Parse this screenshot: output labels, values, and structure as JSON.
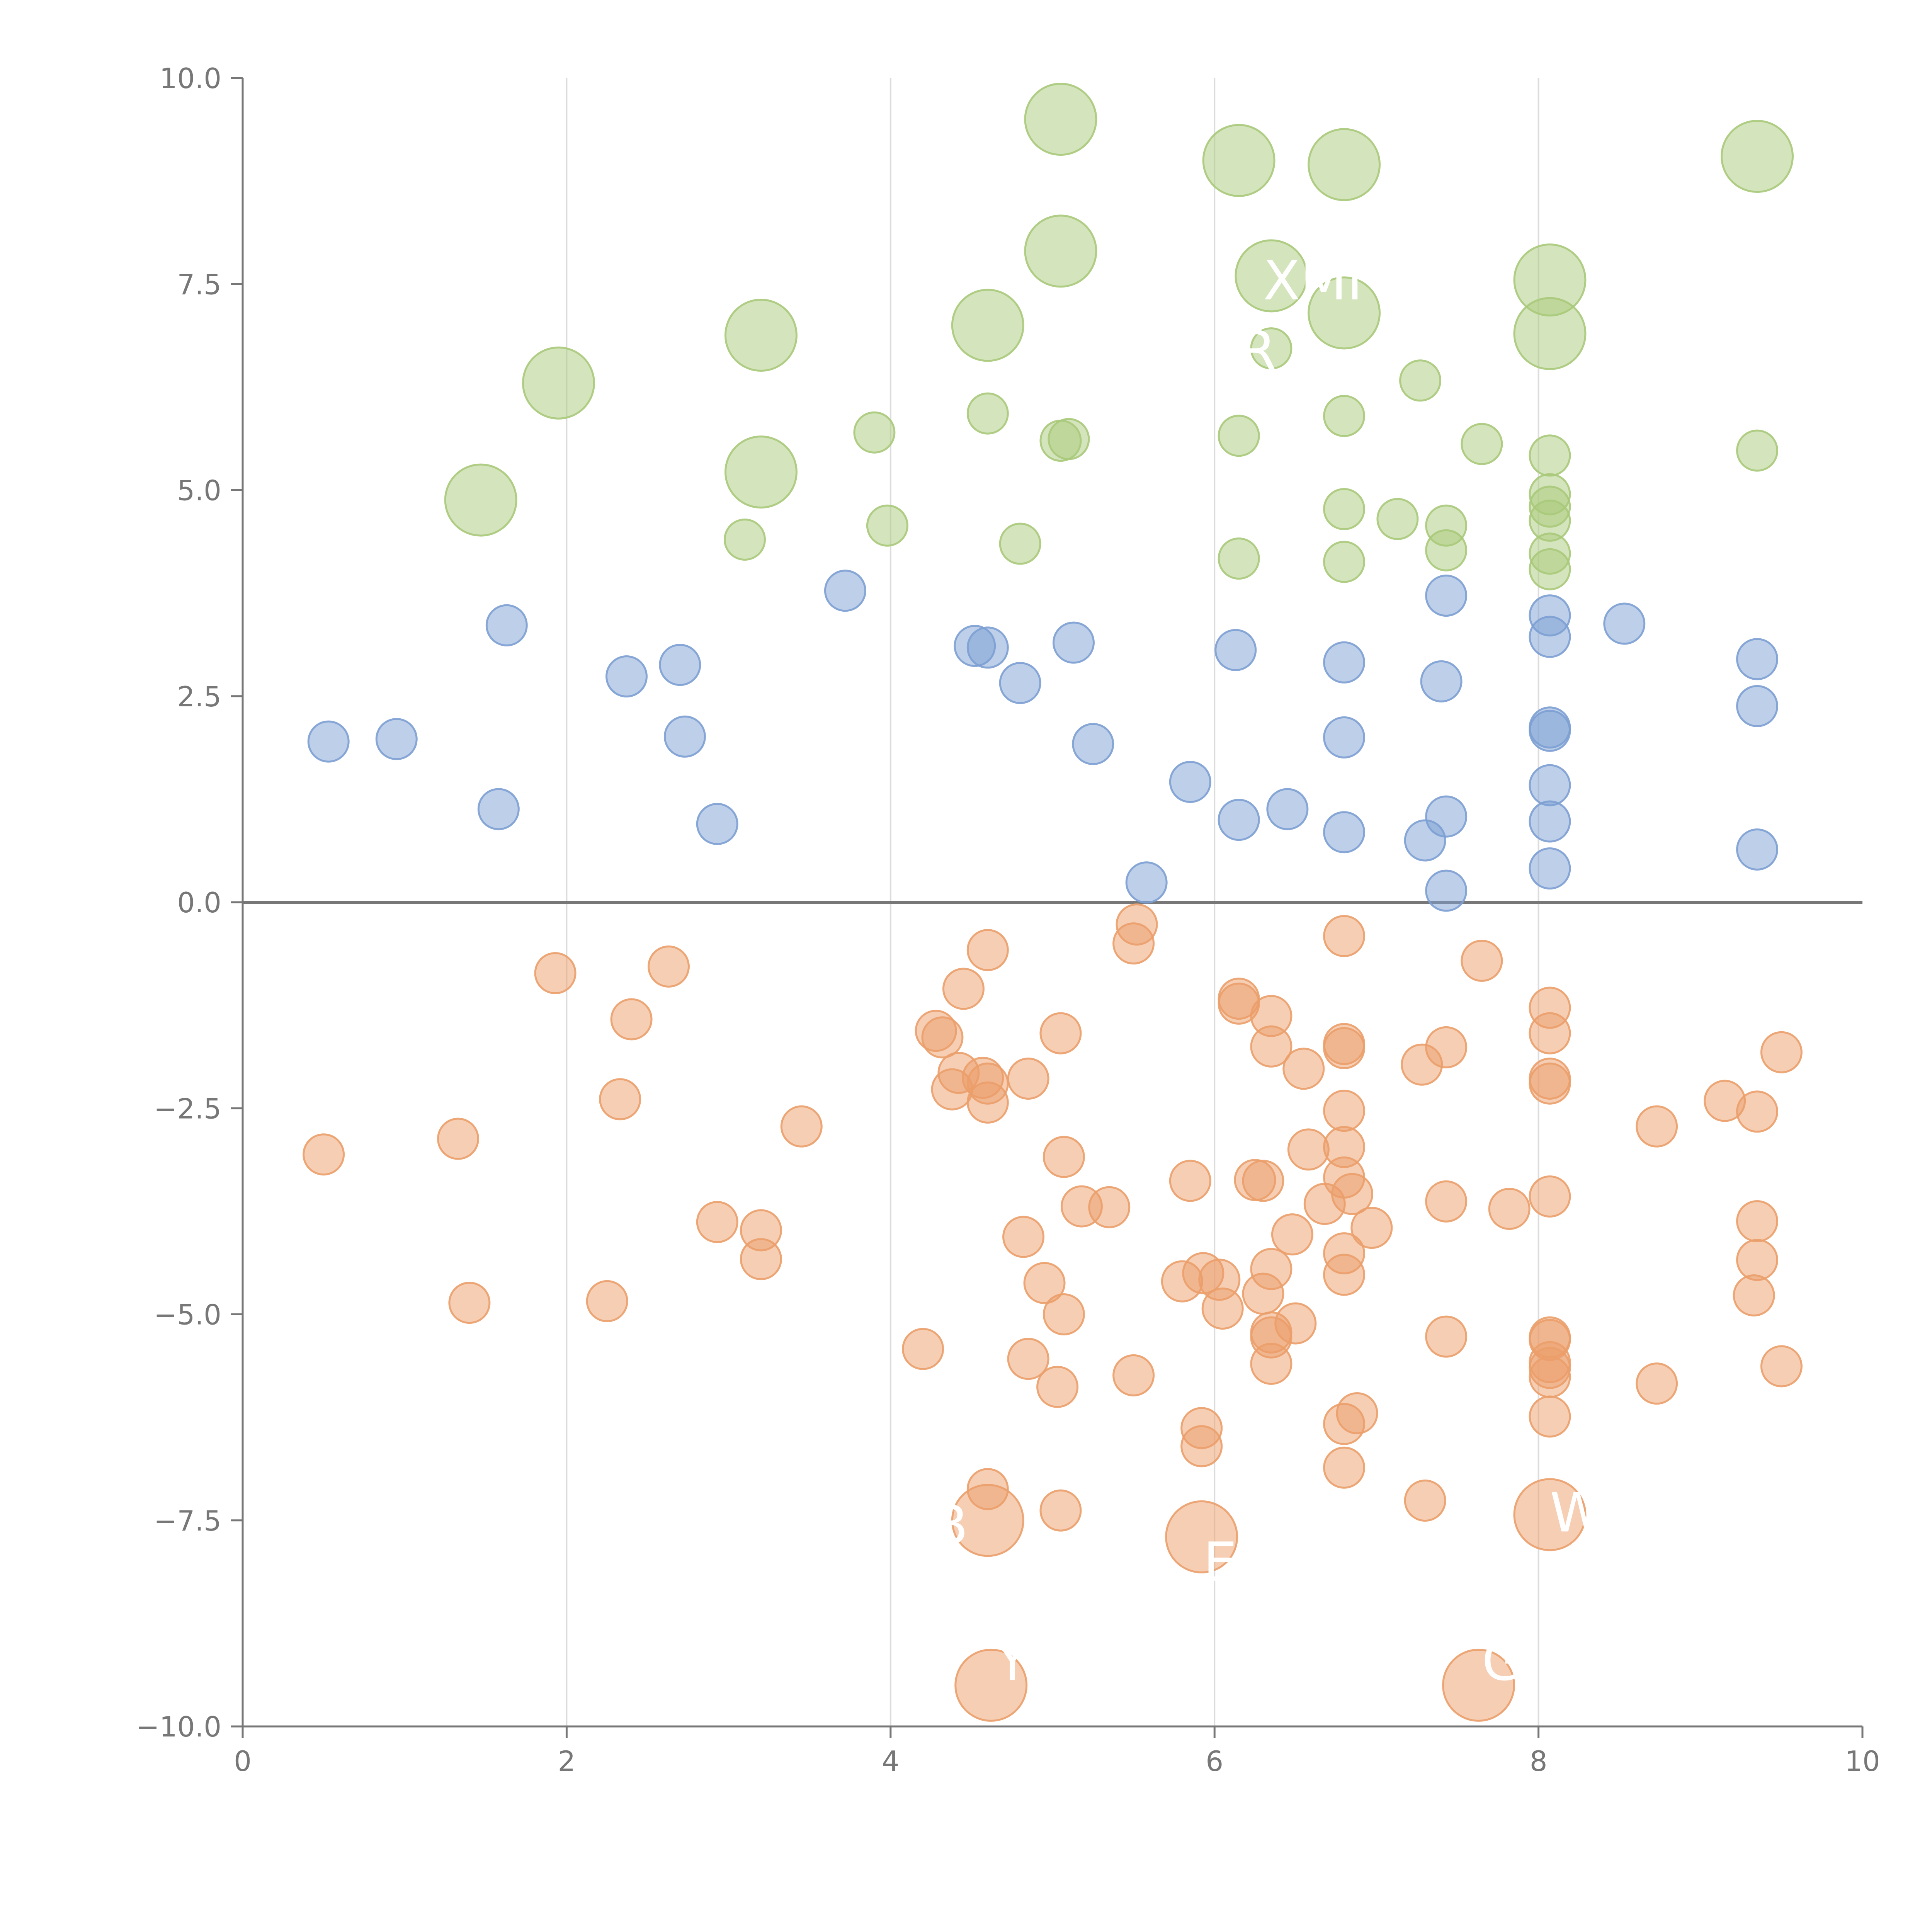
{
  "chart_data": {
    "type": "scatter",
    "title": "",
    "xlabel": "",
    "ylabel": "",
    "xlim": [
      0,
      10
    ],
    "ylim": [
      -10,
      10
    ],
    "x_ticks": [
      "0",
      "2",
      "4",
      "6",
      "8",
      "10"
    ],
    "y_ticks": [
      "10.0",
      "7.5",
      "5.0",
      "2.5",
      "0.0",
      "−2.5",
      "−5.0",
      "−7.5",
      "−10.0"
    ],
    "grid": "vertical",
    "colors": {
      "green": "#a9c97a",
      "blue": "#7c9fd3",
      "orange": "#eb9e6a",
      "axis": "#777777",
      "grid": "#dcdcdc",
      "zero_line": "#777777",
      "label_text": "#ffffff"
    },
    "series": [
      {
        "name": "green",
        "points": [
          [
            5.05,
            9.5,
            2
          ],
          [
            6.15,
            9.0,
            2
          ],
          [
            6.8,
            8.95,
            2
          ],
          [
            9.35,
            9.05,
            2
          ],
          [
            5.05,
            7.9,
            2
          ],
          [
            6.35,
            7.6,
            2
          ],
          [
            8.07,
            7.55,
            2
          ],
          [
            6.8,
            7.15,
            2
          ],
          [
            8.07,
            6.9,
            2
          ],
          [
            3.2,
            6.88,
            2
          ],
          [
            4.6,
            7.0,
            2
          ],
          [
            1.95,
            6.3,
            2
          ],
          [
            3.2,
            5.22,
            2
          ],
          [
            1.47,
            4.88,
            2
          ],
          [
            6.35,
            6.72,
            1
          ],
          [
            7.27,
            6.33,
            1
          ],
          [
            3.9,
            5.7,
            1
          ],
          [
            4.6,
            5.93,
            1
          ],
          [
            5.05,
            5.6,
            1
          ],
          [
            5.1,
            5.62,
            1
          ],
          [
            6.15,
            5.66,
            1
          ],
          [
            6.8,
            5.9,
            1
          ],
          [
            7.65,
            5.56,
            1
          ],
          [
            8.07,
            5.42,
            1
          ],
          [
            9.35,
            5.48,
            1
          ],
          [
            3.1,
            4.4,
            1
          ],
          [
            3.98,
            4.57,
            1
          ],
          [
            4.8,
            4.35,
            1
          ],
          [
            6.8,
            4.77,
            1
          ],
          [
            7.13,
            4.65,
            1
          ],
          [
            7.43,
            4.57,
            1
          ],
          [
            8.07,
            4.95,
            1
          ],
          [
            8.07,
            4.8,
            1
          ],
          [
            8.07,
            4.63,
            1
          ],
          [
            7.43,
            4.27,
            1
          ],
          [
            8.07,
            4.23,
            1
          ],
          [
            6.15,
            4.17,
            1
          ],
          [
            6.8,
            4.13,
            1
          ],
          [
            8.07,
            4.04,
            1
          ]
        ]
      },
      {
        "name": "blue",
        "points": [
          [
            0.53,
            1.95,
            1
          ],
          [
            0.95,
            1.98,
            1
          ],
          [
            1.63,
            3.36,
            1
          ],
          [
            1.58,
            1.13,
            1
          ],
          [
            2.37,
            2.74,
            1
          ],
          [
            2.7,
            2.88,
            1
          ],
          [
            2.73,
            2.01,
            1
          ],
          [
            2.93,
            0.95,
            1
          ],
          [
            3.72,
            3.78,
            1
          ],
          [
            4.52,
            3.11,
            1
          ],
          [
            4.6,
            3.09,
            1
          ],
          [
            4.8,
            2.66,
            1
          ],
          [
            5.13,
            3.15,
            1
          ],
          [
            5.25,
            1.92,
            1
          ],
          [
            5.85,
            1.46,
            1
          ],
          [
            5.58,
            0.24,
            1
          ],
          [
            6.13,
            3.06,
            1
          ],
          [
            6.15,
            1.0,
            1
          ],
          [
            6.45,
            1.13,
            1
          ],
          [
            6.8,
            2.91,
            1
          ],
          [
            6.8,
            2.0,
            1
          ],
          [
            6.8,
            0.85,
            1
          ],
          [
            7.43,
            3.72,
            1
          ],
          [
            7.4,
            2.68,
            1
          ],
          [
            7.43,
            1.04,
            1
          ],
          [
            7.3,
            0.75,
            1
          ],
          [
            7.43,
            0.14,
            1
          ],
          [
            8.07,
            3.48,
            1
          ],
          [
            8.07,
            3.22,
            1
          ],
          [
            8.07,
            2.12,
            1
          ],
          [
            8.07,
            2.08,
            1
          ],
          [
            8.07,
            1.42,
            1
          ],
          [
            8.07,
            0.98,
            1
          ],
          [
            8.07,
            0.41,
            1
          ],
          [
            8.53,
            3.38,
            1
          ],
          [
            9.35,
            2.95,
            1
          ],
          [
            9.35,
            2.38,
            1
          ],
          [
            9.35,
            0.64,
            1
          ]
        ]
      },
      {
        "name": "orange",
        "points": [
          [
            4.6,
            -7.5,
            2
          ],
          [
            5.92,
            -7.7,
            2
          ],
          [
            8.07,
            -7.43,
            2
          ],
          [
            4.62,
            -9.5,
            2
          ],
          [
            7.63,
            -9.5,
            2
          ],
          [
            0.5,
            -3.06,
            1
          ],
          [
            1.33,
            -2.87,
            1
          ],
          [
            1.4,
            -4.86,
            1
          ],
          [
            1.93,
            -0.86,
            1
          ],
          [
            2.33,
            -2.39,
            1
          ],
          [
            2.4,
            -1.42,
            1
          ],
          [
            2.25,
            -4.84,
            1
          ],
          [
            2.63,
            -0.78,
            1
          ],
          [
            2.93,
            -3.88,
            1
          ],
          [
            3.2,
            -3.98,
            1
          ],
          [
            3.2,
            -4.33,
            1
          ],
          [
            3.45,
            -2.72,
            1
          ],
          [
            4.2,
            -5.42,
            1
          ],
          [
            4.28,
            -1.56,
            1
          ],
          [
            4.32,
            -1.64,
            1
          ],
          [
            4.45,
            -1.05,
            1
          ],
          [
            4.42,
            -2.07,
            1
          ],
          [
            4.38,
            -2.27,
            1
          ],
          [
            4.57,
            -2.13,
            1
          ],
          [
            4.6,
            -2.43,
            1
          ],
          [
            4.6,
            -2.2,
            1
          ],
          [
            4.6,
            -0.58,
            1
          ],
          [
            4.6,
            -7.12,
            1
          ],
          [
            4.82,
            -4.06,
            1
          ],
          [
            4.85,
            -2.14,
            1
          ],
          [
            4.85,
            -5.54,
            1
          ],
          [
            4.95,
            -4.62,
            1
          ],
          [
            5.03,
            -5.88,
            1
          ],
          [
            5.05,
            -1.59,
            1
          ],
          [
            5.05,
            -7.38,
            1
          ],
          [
            5.07,
            -3.09,
            1
          ],
          [
            5.07,
            -5.0,
            1
          ],
          [
            5.18,
            -3.69,
            1
          ],
          [
            5.35,
            -3.7,
            1
          ],
          [
            5.5,
            -5.74,
            1
          ],
          [
            5.5,
            -0.5,
            1
          ],
          [
            5.52,
            -0.27,
            1
          ],
          [
            5.8,
            -4.6,
            1
          ],
          [
            5.85,
            -3.38,
            1
          ],
          [
            5.92,
            -6.38,
            1
          ],
          [
            5.92,
            -6.6,
            1
          ],
          [
            5.93,
            -4.5,
            1
          ],
          [
            6.03,
            -4.58,
            1
          ],
          [
            6.05,
            -4.93,
            1
          ],
          [
            6.15,
            -1.17,
            1
          ],
          [
            6.15,
            -1.23,
            1
          ],
          [
            6.25,
            -3.37,
            1
          ],
          [
            6.3,
            -3.38,
            1
          ],
          [
            6.3,
            -4.75,
            1
          ],
          [
            6.35,
            -1.38,
            1
          ],
          [
            6.35,
            -1.75,
            1
          ],
          [
            6.35,
            -4.45,
            1
          ],
          [
            6.35,
            -5.22,
            1
          ],
          [
            6.35,
            -5.28,
            1
          ],
          [
            6.35,
            -5.6,
            1
          ],
          [
            6.48,
            -4.03,
            1
          ],
          [
            6.5,
            -5.11,
            1
          ],
          [
            6.55,
            -2.02,
            1
          ],
          [
            6.58,
            -3.0,
            1
          ],
          [
            6.68,
            -3.66,
            1
          ],
          [
            6.8,
            -0.41,
            1
          ],
          [
            6.8,
            -1.72,
            1
          ],
          [
            6.8,
            -1.77,
            1
          ],
          [
            6.8,
            -2.53,
            1
          ],
          [
            6.8,
            -2.97,
            1
          ],
          [
            6.8,
            -3.34,
            1
          ],
          [
            6.8,
            -4.26,
            1
          ],
          [
            6.8,
            -4.52,
            1
          ],
          [
            6.8,
            -6.33,
            1
          ],
          [
            6.8,
            -6.86,
            1
          ],
          [
            6.85,
            -3.54,
            1
          ],
          [
            6.88,
            -6.2,
            1
          ],
          [
            6.97,
            -3.95,
            1
          ],
          [
            7.28,
            -1.97,
            1
          ],
          [
            7.3,
            -7.26,
            1
          ],
          [
            7.43,
            -1.76,
            1
          ],
          [
            7.43,
            -3.63,
            1
          ],
          [
            7.43,
            -5.27,
            1
          ],
          [
            7.65,
            -0.71,
            1
          ],
          [
            7.82,
            -3.72,
            1
          ],
          [
            8.07,
            -1.28,
            1
          ],
          [
            8.07,
            -1.59,
            1
          ],
          [
            8.07,
            -2.14,
            1
          ],
          [
            8.07,
            -2.2,
            1
          ],
          [
            8.07,
            -3.57,
            1
          ],
          [
            8.07,
            -5.28,
            1
          ],
          [
            8.07,
            -5.31,
            1
          ],
          [
            8.07,
            -5.58,
            1
          ],
          [
            8.07,
            -5.65,
            1
          ],
          [
            8.07,
            -5.76,
            1
          ],
          [
            8.07,
            -6.24,
            1
          ],
          [
            8.73,
            -2.72,
            1
          ],
          [
            8.73,
            -5.84,
            1
          ],
          [
            9.15,
            -2.41,
            1
          ],
          [
            9.35,
            -2.54,
            1
          ],
          [
            9.35,
            -3.87,
            1
          ],
          [
            9.35,
            -4.34,
            1
          ],
          [
            9.33,
            -4.77,
            1
          ],
          [
            9.5,
            -1.82,
            1
          ],
          [
            9.5,
            -5.63,
            1
          ]
        ]
      }
    ],
    "point_labels": [
      {
        "text": "XMI",
        "x": 6.3,
        "y": 7.55
      },
      {
        "text": "R",
        "x": 6.15,
        "y": 6.7
      },
      {
        "text": "B",
        "x": 4.25,
        "y": -7.55
      },
      {
        "text": "E",
        "x": 5.93,
        "y": -8.0
      },
      {
        "text": "W",
        "x": 8.07,
        "y": -7.4
      },
      {
        "text": "Y",
        "x": 4.65,
        "y": -9.2
      },
      {
        "text": "G",
        "x": 7.65,
        "y": -9.2
      }
    ]
  }
}
